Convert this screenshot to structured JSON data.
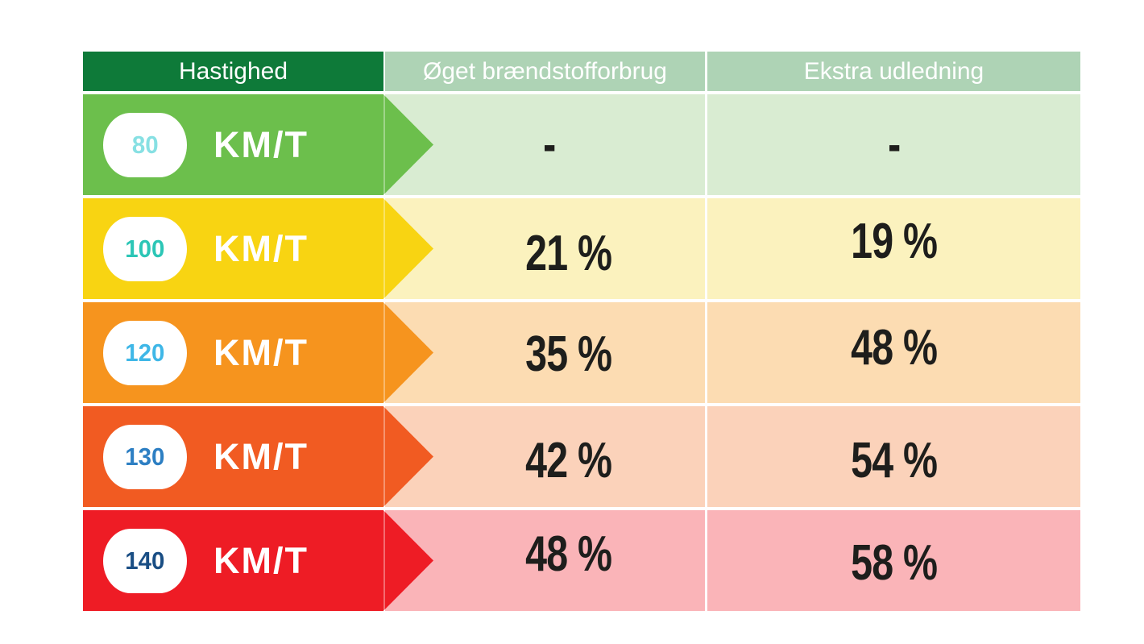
{
  "table": {
    "header": {
      "speed": "Hastighed",
      "fuel": "Øget brændstofforbrug",
      "emission": "Ekstra udledning"
    },
    "header_colors": {
      "speed_bg": "#0e7a39",
      "other_bg": "#aed3b5",
      "text": "#ffffff"
    },
    "value_text_color": "#1e1e1c",
    "badge_bg": "#ffffff",
    "rows": [
      {
        "speed": "80",
        "unit": "KM/T",
        "fuel": "-",
        "emission": "-",
        "band_color": "#6cbf4c",
        "cell_color": "#d9ecd2",
        "badge_number_color": "#87e0e3"
      },
      {
        "speed": "100",
        "unit": "KM/T",
        "fuel": "21 %",
        "emission": "19 %",
        "band_color": "#f8d412",
        "cell_color": "#fbf2be",
        "badge_number_color": "#2cc6b6"
      },
      {
        "speed": "120",
        "unit": "KM/T",
        "fuel": "35 %",
        "emission": "48 %",
        "band_color": "#f6941e",
        "cell_color": "#fcdcb2",
        "badge_number_color": "#3fb7e7"
      },
      {
        "speed": "130",
        "unit": "KM/T",
        "fuel": "42 %",
        "emission": "54 %",
        "band_color": "#f15b22",
        "cell_color": "#fbd2ba",
        "badge_number_color": "#2d7fc3"
      },
      {
        "speed": "140",
        "unit": "KM/T",
        "fuel": "48 %",
        "emission": "58 %",
        "band_color": "#ee1c25",
        "cell_color": "#fab4b8",
        "badge_number_color": "#1a4e84"
      }
    ]
  },
  "chart_data": {
    "type": "table",
    "title": "",
    "columns": [
      "Hastighed",
      "Øget brændstofforbrug",
      "Ekstra udledning"
    ],
    "rows": [
      [
        "80 KM/T",
        "-",
        "-"
      ],
      [
        "100 KM/T",
        "21 %",
        "19 %"
      ],
      [
        "120 KM/T",
        "35 %",
        "48 %"
      ],
      [
        "130 KM/T",
        "42 %",
        "54 %"
      ],
      [
        "140 KM/T",
        "48 %",
        "58 %"
      ]
    ],
    "notes": "Speed band colors run green→yellow→orange→red with right-pointing chevron banners; values are percent increases relative to 80 KM/T."
  }
}
